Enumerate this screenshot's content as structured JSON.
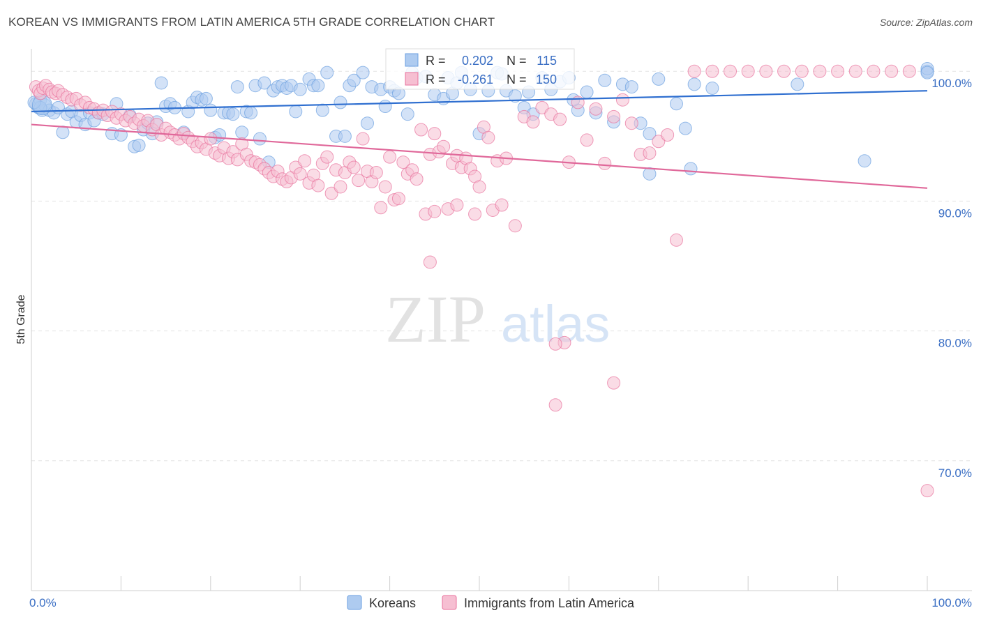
{
  "title": "KOREAN VS IMMIGRANTS FROM LATIN AMERICA 5TH GRADE CORRELATION CHART",
  "source": "Source: ZipAtlas.com",
  "watermark": {
    "zip": "ZIP",
    "atlas": "atlas"
  },
  "stats": [
    {
      "r_label": "R =",
      "r_value": "0.202",
      "n_label": "N =",
      "n_value": "115",
      "color": "#6b9fe0"
    },
    {
      "r_label": "R =",
      "r_value": "-0.261",
      "n_label": "N =",
      "n_value": "150",
      "color": "#f09ab6"
    }
  ],
  "chart_data": {
    "type": "scatter",
    "title": "KOREAN VS IMMIGRANTS FROM LATIN AMERICA 5TH GRADE CORRELATION CHART",
    "ylabel": "5th Grade",
    "xlim": [
      0,
      100
    ],
    "ylim": [
      60,
      102
    ],
    "x_tick_labels": [
      "0.0%",
      "100.0%"
    ],
    "y_ticks": [
      {
        "value": 100,
        "label": "100.0%"
      },
      {
        "value": 90,
        "label": "90.0%"
      },
      {
        "value": 80,
        "label": "80.0%"
      },
      {
        "value": 70,
        "label": "70.0%"
      }
    ],
    "grid": true,
    "legend_position": "bottom",
    "series": [
      {
        "name": "Koreans",
        "color": "#6b9fe0",
        "fill": "#aecbf0",
        "trend": [
          [
            0,
            96.9
          ],
          [
            100,
            98.5
          ]
        ],
        "points": [
          [
            0.5,
            97.5
          ],
          [
            0.8,
            97.2
          ],
          [
            1.0,
            97.8
          ],
          [
            1.2,
            97.0
          ],
          [
            1.5,
            97.4
          ],
          [
            2.0,
            97.0
          ],
          [
            2.5,
            96.8
          ],
          [
            3.0,
            97.2
          ],
          [
            3.5,
            95.3
          ],
          [
            4.0,
            96.7
          ],
          [
            4.5,
            96.9
          ],
          [
            5.0,
            96.1
          ],
          [
            5.5,
            96.6
          ],
          [
            6.0,
            95.9
          ],
          [
            6.5,
            96.8
          ],
          [
            7.0,
            96.2
          ],
          [
            7.5,
            96.8
          ],
          [
            8.0,
            96.7
          ],
          [
            9.0,
            95.2
          ],
          [
            9.5,
            97.5
          ],
          [
            10.0,
            95.1
          ],
          [
            11.0,
            96.6
          ],
          [
            11.5,
            94.2
          ],
          [
            12.0,
            94.3
          ],
          [
            12.5,
            95.5
          ],
          [
            13.0,
            96.0
          ],
          [
            13.5,
            95.2
          ],
          [
            14.0,
            96.1
          ],
          [
            14.5,
            99.1
          ],
          [
            15.0,
            97.3
          ],
          [
            15.5,
            97.5
          ],
          [
            16.0,
            97.2
          ],
          [
            17.0,
            95.3
          ],
          [
            17.5,
            96.9
          ],
          [
            18.0,
            97.6
          ],
          [
            18.5,
            98.0
          ],
          [
            19.0,
            97.8
          ],
          [
            19.5,
            97.9
          ],
          [
            20.0,
            97.0
          ],
          [
            20.5,
            94.9
          ],
          [
            21.0,
            95.1
          ],
          [
            21.5,
            96.8
          ],
          [
            22.0,
            96.8
          ],
          [
            22.5,
            96.7
          ],
          [
            23.0,
            98.8
          ],
          [
            23.5,
            95.3
          ],
          [
            24.0,
            96.9
          ],
          [
            24.5,
            96.8
          ],
          [
            25.0,
            98.9
          ],
          [
            25.5,
            94.8
          ],
          [
            26.0,
            99.1
          ],
          [
            27.0,
            98.5
          ],
          [
            27.5,
            98.8
          ],
          [
            28.0,
            98.9
          ],
          [
            28.5,
            98.7
          ],
          [
            29.0,
            98.9
          ],
          [
            29.5,
            96.9
          ],
          [
            30.0,
            98.6
          ],
          [
            31.0,
            99.4
          ],
          [
            31.5,
            98.9
          ],
          [
            32.0,
            98.9
          ],
          [
            32.5,
            97.0
          ],
          [
            33.0,
            99.9
          ],
          [
            34.0,
            95.0
          ],
          [
            34.5,
            97.6
          ],
          [
            35.0,
            95.0
          ],
          [
            35.5,
            98.9
          ],
          [
            36.0,
            99.3
          ],
          [
            37.0,
            99.9
          ],
          [
            37.5,
            96.0
          ],
          [
            38.0,
            98.8
          ],
          [
            39.0,
            98.6
          ],
          [
            39.5,
            97.3
          ],
          [
            40.0,
            98.8
          ],
          [
            40.5,
            98.5
          ],
          [
            41.0,
            98.3
          ],
          [
            42.0,
            96.7
          ],
          [
            42.5,
            99.9
          ],
          [
            43.0,
            99.5
          ],
          [
            44.0,
            99.6
          ],
          [
            45.0,
            98.2
          ],
          [
            46.0,
            97.9
          ],
          [
            46.5,
            99.5
          ],
          [
            47.0,
            98.3
          ],
          [
            47.5,
            99.1
          ],
          [
            48.0,
            99.9
          ],
          [
            49.0,
            98.6
          ],
          [
            50.0,
            95.2
          ],
          [
            51.0,
            98.5
          ],
          [
            52.0,
            99.9
          ],
          [
            52.5,
            99.8
          ],
          [
            53.0,
            98.5
          ],
          [
            54.0,
            98.1
          ],
          [
            55.0,
            97.2
          ],
          [
            55.5,
            98.4
          ],
          [
            56.0,
            96.7
          ],
          [
            57.0,
            99.5
          ],
          [
            58.0,
            98.6
          ],
          [
            59.0,
            99.2
          ],
          [
            60.0,
            99.5
          ],
          [
            61.0,
            97.0
          ],
          [
            62.0,
            98.4
          ],
          [
            63.0,
            96.8
          ],
          [
            64.0,
            99.3
          ],
          [
            65.0,
            96.1
          ],
          [
            66.0,
            99.0
          ],
          [
            67.0,
            98.8
          ],
          [
            68.0,
            96.0
          ],
          [
            69.0,
            92.1
          ],
          [
            70.0,
            99.4
          ],
          [
            72.0,
            97.5
          ],
          [
            73.0,
            95.6
          ],
          [
            73.6,
            92.5
          ],
          [
            74.0,
            99.0
          ],
          [
            76.0,
            98.7
          ],
          [
            85.5,
            99.0
          ],
          [
            93.0,
            93.1
          ],
          [
            100,
            100
          ],
          [
            100,
            100.2
          ],
          [
            100,
            99.9
          ],
          [
            1.0,
            97.2
          ],
          [
            0.3,
            97.6
          ],
          [
            26.5,
            93.0
          ],
          [
            60.5,
            97.8
          ],
          [
            69.0,
            95.2
          ]
        ]
      },
      {
        "name": "Immigrants from Latin America",
        "color": "#e8729c",
        "fill": "#f6bfd2",
        "trend": [
          [
            0,
            95.9
          ],
          [
            100,
            91.0
          ]
        ],
        "points": [
          [
            0.5,
            98.8
          ],
          [
            0.8,
            98.5
          ],
          [
            1.0,
            98.3
          ],
          [
            1.3,
            98.7
          ],
          [
            1.6,
            98.9
          ],
          [
            2.0,
            98.6
          ],
          [
            2.3,
            98.4
          ],
          [
            2.7,
            98.3
          ],
          [
            3.0,
            98.5
          ],
          [
            3.5,
            98.2
          ],
          [
            4.0,
            98.0
          ],
          [
            4.5,
            97.8
          ],
          [
            5.0,
            97.9
          ],
          [
            5.5,
            97.4
          ],
          [
            6.0,
            97.6
          ],
          [
            6.5,
            97.2
          ],
          [
            7.0,
            97.1
          ],
          [
            7.5,
            96.8
          ],
          [
            8.0,
            97.0
          ],
          [
            8.5,
            96.6
          ],
          [
            9.0,
            96.9
          ],
          [
            9.5,
            96.4
          ],
          [
            10.0,
            96.7
          ],
          [
            10.5,
            96.2
          ],
          [
            11.0,
            96.5
          ],
          [
            11.5,
            96.0
          ],
          [
            12.0,
            96.3
          ],
          [
            12.5,
            95.8
          ],
          [
            13.0,
            96.2
          ],
          [
            13.5,
            95.5
          ],
          [
            14.0,
            95.9
          ],
          [
            14.5,
            95.1
          ],
          [
            15.0,
            95.6
          ],
          [
            15.5,
            95.3
          ],
          [
            16.0,
            95.1
          ],
          [
            16.5,
            94.8
          ],
          [
            17.0,
            95.2
          ],
          [
            17.5,
            94.9
          ],
          [
            18.0,
            94.6
          ],
          [
            18.5,
            94.2
          ],
          [
            19.0,
            94.5
          ],
          [
            19.5,
            94.0
          ],
          [
            20.0,
            94.8
          ],
          [
            20.5,
            93.7
          ],
          [
            21.0,
            93.5
          ],
          [
            21.5,
            94.1
          ],
          [
            22.0,
            93.3
          ],
          [
            22.5,
            93.8
          ],
          [
            23.0,
            93.2
          ],
          [
            23.5,
            94.4
          ],
          [
            24.0,
            93.6
          ],
          [
            24.5,
            93.1
          ],
          [
            25.0,
            93.0
          ],
          [
            25.5,
            92.8
          ],
          [
            26.0,
            92.5
          ],
          [
            26.5,
            92.2
          ],
          [
            27.0,
            91.9
          ],
          [
            27.5,
            92.3
          ],
          [
            28.0,
            91.7
          ],
          [
            28.5,
            91.5
          ],
          [
            29.0,
            91.8
          ],
          [
            29.5,
            92.6
          ],
          [
            30.0,
            92.1
          ],
          [
            30.5,
            93.1
          ],
          [
            31.0,
            91.4
          ],
          [
            31.5,
            92.0
          ],
          [
            32.0,
            91.2
          ],
          [
            32.5,
            92.9
          ],
          [
            33.0,
            93.4
          ],
          [
            33.5,
            90.6
          ],
          [
            34.0,
            92.4
          ],
          [
            34.5,
            91.1
          ],
          [
            35.0,
            92.2
          ],
          [
            35.5,
            93.0
          ],
          [
            36.0,
            92.6
          ],
          [
            36.5,
            91.6
          ],
          [
            37.0,
            94.8
          ],
          [
            37.5,
            92.3
          ],
          [
            38.0,
            91.5
          ],
          [
            38.5,
            92.2
          ],
          [
            39.0,
            89.5
          ],
          [
            39.5,
            91.1
          ],
          [
            40.0,
            93.4
          ],
          [
            40.5,
            90.1
          ],
          [
            41.0,
            90.2
          ],
          [
            41.5,
            93.0
          ],
          [
            42.0,
            92.1
          ],
          [
            42.5,
            92.4
          ],
          [
            43.0,
            91.7
          ],
          [
            43.5,
            95.5
          ],
          [
            44.0,
            89.0
          ],
          [
            44.5,
            93.6
          ],
          [
            45.0,
            89.2
          ],
          [
            45.5,
            93.8
          ],
          [
            46.0,
            94.2
          ],
          [
            46.5,
            89.4
          ],
          [
            47.0,
            92.9
          ],
          [
            47.5,
            93.5
          ],
          [
            48.0,
            92.6
          ],
          [
            48.5,
            93.3
          ],
          [
            49.0,
            92.5
          ],
          [
            49.5,
            91.9
          ],
          [
            50.0,
            91.1
          ],
          [
            50.5,
            95.7
          ],
          [
            51.0,
            94.9
          ],
          [
            51.5,
            89.3
          ],
          [
            52.0,
            93.1
          ],
          [
            52.5,
            89.7
          ],
          [
            53.0,
            93.3
          ],
          [
            54.0,
            88.1
          ],
          [
            55.0,
            96.5
          ],
          [
            56.0,
            96.1
          ],
          [
            57.0,
            97.2
          ],
          [
            58.0,
            96.7
          ],
          [
            59.0,
            96.3
          ],
          [
            60.0,
            93.0
          ],
          [
            61.0,
            97.6
          ],
          [
            62.0,
            94.7
          ],
          [
            63.0,
            97.1
          ],
          [
            64.0,
            92.9
          ],
          [
            65.0,
            96.5
          ],
          [
            66.0,
            97.8
          ],
          [
            67.0,
            96.0
          ],
          [
            68.0,
            93.6
          ],
          [
            69.0,
            93.7
          ],
          [
            70.0,
            94.6
          ],
          [
            71.0,
            95.1
          ],
          [
            72.0,
            87.0
          ],
          [
            74.0,
            100
          ],
          [
            76.0,
            100
          ],
          [
            78.0,
            100
          ],
          [
            80.0,
            100
          ],
          [
            82.0,
            100
          ],
          [
            84.0,
            100
          ],
          [
            86.0,
            100
          ],
          [
            88.0,
            100
          ],
          [
            90.0,
            100
          ],
          [
            92.0,
            100
          ],
          [
            94.0,
            100
          ],
          [
            96.0,
            100
          ],
          [
            98.0,
            100
          ],
          [
            59.5,
            79.1
          ],
          [
            65.0,
            76.0
          ],
          [
            58.5,
            74.3
          ],
          [
            100,
            67.7
          ],
          [
            44.5,
            85.3
          ],
          [
            47.5,
            89.7
          ],
          [
            49.5,
            89.0
          ],
          [
            58.5,
            79.0
          ],
          [
            45.0,
            95.2
          ]
        ]
      }
    ]
  }
}
